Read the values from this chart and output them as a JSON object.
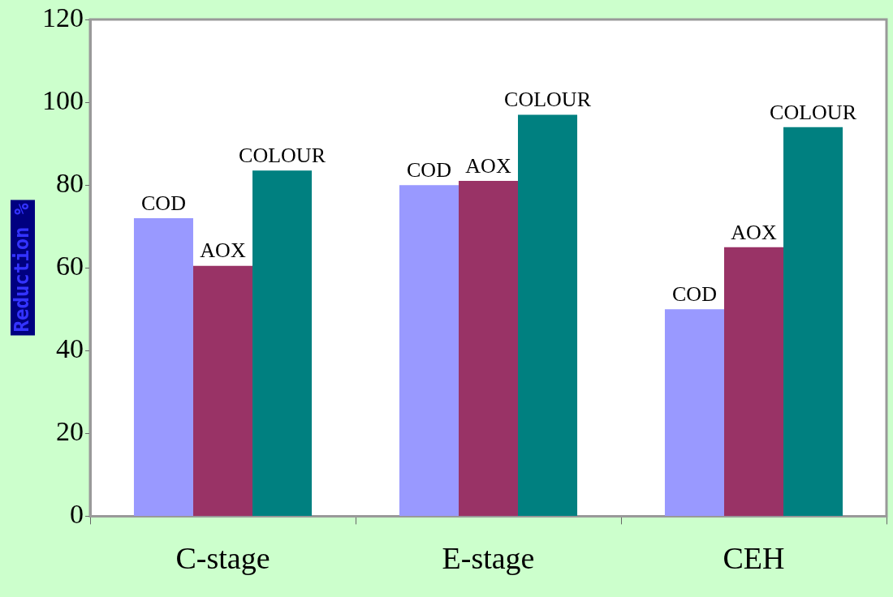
{
  "chart_data": {
    "type": "bar",
    "ylabel": "Reduction %",
    "categories": [
      "C-stage",
      "E-stage",
      "CEH"
    ],
    "series": [
      {
        "name": "COD",
        "color": "#9999ff",
        "values": [
          72,
          80,
          50
        ]
      },
      {
        "name": "AOX",
        "color": "#993366",
        "values": [
          60.5,
          81,
          65
        ]
      },
      {
        "name": "COLOUR",
        "color": "#008080",
        "values": [
          83.5,
          97,
          94
        ]
      }
    ],
    "ylim": [
      0,
      120
    ],
    "yticks": [
      0,
      20,
      40,
      60,
      80,
      100,
      120
    ],
    "grid": false,
    "legend": false
  }
}
